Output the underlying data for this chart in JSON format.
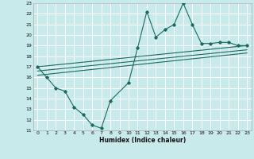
{
  "xlabel": "Humidex (Indice chaleur)",
  "ylabel": "",
  "background_color": "#c8eaea",
  "grid_color": "#ffffff",
  "line_color": "#1a6b5e",
  "xlim": [
    -0.5,
    23.5
  ],
  "ylim": [
    11,
    23
  ],
  "x_ticks": [
    0,
    1,
    2,
    3,
    4,
    5,
    6,
    7,
    8,
    9,
    10,
    11,
    12,
    13,
    14,
    15,
    16,
    17,
    18,
    19,
    20,
    21,
    22,
    23
  ],
  "y_ticks": [
    11,
    12,
    13,
    14,
    15,
    16,
    17,
    18,
    19,
    20,
    21,
    22,
    23
  ],
  "main_x": [
    0,
    1,
    2,
    3,
    4,
    5,
    6,
    7,
    8,
    10,
    11,
    12,
    13,
    14,
    15,
    16,
    17,
    18,
    19,
    20,
    21,
    22,
    23
  ],
  "main_y": [
    17,
    16,
    15,
    14.7,
    13.2,
    12.5,
    11.5,
    11.2,
    13.8,
    15.5,
    18.8,
    22.2,
    19.8,
    20.5,
    21.0,
    23.0,
    21.0,
    19.2,
    19.2,
    19.3,
    19.3,
    19.0,
    19.0
  ],
  "line1_x": [
    0,
    23
  ],
  "line1_y": [
    17.0,
    19.0
  ],
  "line2_x": [
    0,
    23
  ],
  "line2_y": [
    16.6,
    18.6
  ],
  "line3_x": [
    0,
    23
  ],
  "line3_y": [
    16.2,
    18.3
  ]
}
